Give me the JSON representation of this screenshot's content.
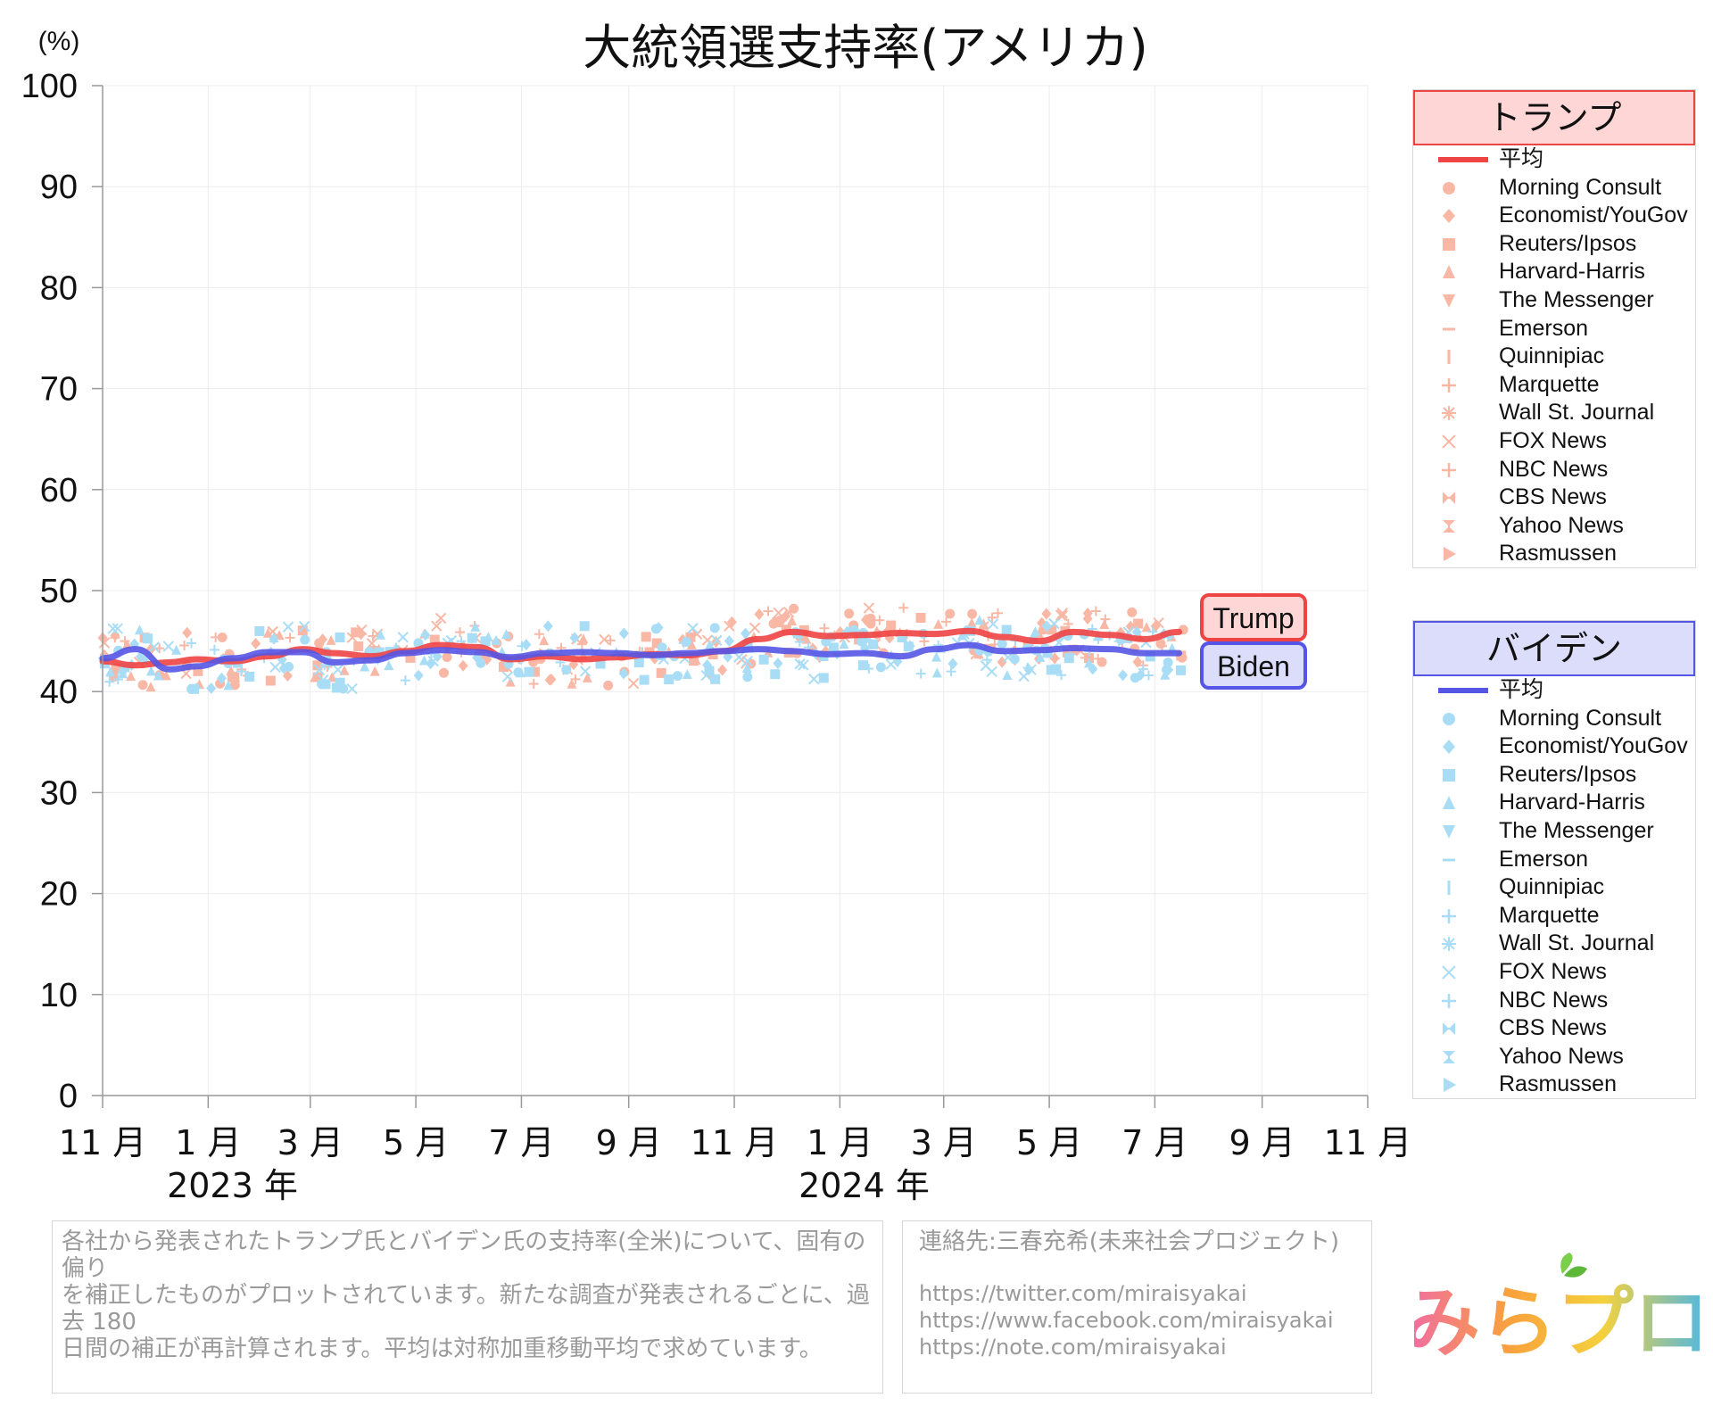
{
  "page": {
    "title": "大統領選支持率(アメリカ)",
    "y_unit": "(%)",
    "note": [
      "各社から発表されたトランプ氏とバイデン氏の支持率(全米)について、固有の偏り",
      "を補正したものがプロットされています。新たな調査が発表されるごとに、過去 180",
      "日間の補正が再計算されます。平均は対称加重移動平均で求めています。"
    ],
    "contact_title": "連絡先:三春充希(未来社会プロジェクト)",
    "links": [
      "https://twitter.com/miraisyakai",
      "https://www.facebook.com/miraisyakai",
      "https://note.com/miraisyakai"
    ],
    "logo_text": "みらプロ"
  },
  "legends": [
    {
      "heading": "トランプ",
      "color": "#ef4444",
      "head_fill": "#ffd6d6",
      "marker_color": "#f9b8a6",
      "items": [
        {
          "label": "平均",
          "icon": "line"
        },
        {
          "label": "Morning Consult",
          "icon": "circle"
        },
        {
          "label": "Economist/YouGov",
          "icon": "diamond"
        },
        {
          "label": "Reuters/Ipsos",
          "icon": "square"
        },
        {
          "label": "Harvard-Harris",
          "icon": "triangle-up"
        },
        {
          "label": "The Messenger",
          "icon": "triangle-down"
        },
        {
          "label": "Emerson",
          "icon": "dash"
        },
        {
          "label": "Quinnipiac",
          "icon": "vbar"
        },
        {
          "label": "Marquette",
          "icon": "plus"
        },
        {
          "label": "Wall St. Journal",
          "icon": "asterisk"
        },
        {
          "label": "FOX News",
          "icon": "x"
        },
        {
          "label": "NBC News",
          "icon": "plus"
        },
        {
          "label": "CBS News",
          "icon": "bowtie"
        },
        {
          "label": "Yahoo News",
          "icon": "hourglass"
        },
        {
          "label": "Rasmussen",
          "icon": "triangle-right"
        }
      ]
    },
    {
      "heading": "バイデン",
      "color": "#5555e6",
      "head_fill": "#dcdcfb",
      "marker_color": "#a9dcf5",
      "items": [
        {
          "label": "平均",
          "icon": "line"
        },
        {
          "label": "Morning Consult",
          "icon": "circle"
        },
        {
          "label": "Economist/YouGov",
          "icon": "diamond"
        },
        {
          "label": "Reuters/Ipsos",
          "icon": "square"
        },
        {
          "label": "Harvard-Harris",
          "icon": "triangle-up"
        },
        {
          "label": "The Messenger",
          "icon": "triangle-down"
        },
        {
          "label": "Emerson",
          "icon": "dash"
        },
        {
          "label": "Quinnipiac",
          "icon": "vbar"
        },
        {
          "label": "Marquette",
          "icon": "plus"
        },
        {
          "label": "Wall St. Journal",
          "icon": "asterisk"
        },
        {
          "label": "FOX News",
          "icon": "x"
        },
        {
          "label": "NBC News",
          "icon": "plus"
        },
        {
          "label": "CBS News",
          "icon": "bowtie"
        },
        {
          "label": "Yahoo News",
          "icon": "hourglass"
        },
        {
          "label": "Rasmussen",
          "icon": "triangle-right"
        }
      ]
    }
  ],
  "chart_data": {
    "type": "line",
    "title": "大統領選支持率(アメリカ)",
    "ylabel": "(%)",
    "ylim": [
      0,
      100
    ],
    "yticks": [
      0,
      10,
      20,
      30,
      40,
      50,
      60,
      70,
      80,
      90,
      100
    ],
    "xlim": [
      "2022-11-01",
      "2024-11-01"
    ],
    "month_ticks": [
      {
        "date": "2022-11-01",
        "label": "11 月"
      },
      {
        "date": "2023-01-01",
        "label": "1 月"
      },
      {
        "date": "2023-03-01",
        "label": "3 月"
      },
      {
        "date": "2023-05-01",
        "label": "5 月"
      },
      {
        "date": "2023-07-01",
        "label": "7 月"
      },
      {
        "date": "2023-09-01",
        "label": "9 月"
      },
      {
        "date": "2023-11-01",
        "label": "11 月"
      },
      {
        "date": "2024-01-01",
        "label": "1 月"
      },
      {
        "date": "2024-03-01",
        "label": "3 月"
      },
      {
        "date": "2024-05-01",
        "label": "5 月"
      },
      {
        "date": "2024-07-01",
        "label": "7 月"
      },
      {
        "date": "2024-09-01",
        "label": "9 月"
      },
      {
        "date": "2024-11-01",
        "label": "11 月"
      }
    ],
    "year_labels": [
      {
        "date": "2023-01-15",
        "label": "2023 年"
      },
      {
        "date": "2024-01-15",
        "label": "2024 年"
      }
    ],
    "grid": true,
    "series": [
      {
        "name": "Trump",
        "color": "#ef4444",
        "x": [
          "2022-11-01",
          "2022-11-20",
          "2022-12-10",
          "2022-12-25",
          "2023-01-15",
          "2023-02-05",
          "2023-02-25",
          "2023-03-15",
          "2023-04-05",
          "2023-04-25",
          "2023-05-15",
          "2023-06-05",
          "2023-06-25",
          "2023-07-15",
          "2023-08-05",
          "2023-08-25",
          "2023-09-15",
          "2023-10-05",
          "2023-10-25",
          "2023-11-15",
          "2023-12-05",
          "2023-12-25",
          "2024-01-15",
          "2024-02-05",
          "2024-02-25",
          "2024-03-15",
          "2024-04-05",
          "2024-04-25",
          "2024-05-15",
          "2024-06-05",
          "2024-06-25",
          "2024-07-15"
        ],
        "y": [
          43.0,
          42.6,
          42.9,
          43.2,
          43.0,
          43.5,
          44.2,
          43.8,
          43.5,
          44.0,
          44.6,
          44.4,
          43.2,
          43.5,
          43.2,
          43.4,
          43.7,
          43.6,
          44.0,
          45.2,
          45.9,
          45.5,
          45.6,
          45.8,
          45.7,
          46.0,
          45.4,
          45.0,
          45.9,
          45.6,
          45.2,
          45.9
        ]
      },
      {
        "name": "Biden",
        "color": "#5555e6",
        "x": [
          "2022-11-01",
          "2022-11-20",
          "2022-12-10",
          "2022-12-25",
          "2023-01-15",
          "2023-02-05",
          "2023-02-25",
          "2023-03-15",
          "2023-04-05",
          "2023-04-25",
          "2023-05-15",
          "2023-06-05",
          "2023-06-25",
          "2023-07-15",
          "2023-08-05",
          "2023-08-25",
          "2023-09-15",
          "2023-10-05",
          "2023-10-25",
          "2023-11-15",
          "2023-12-05",
          "2023-12-25",
          "2024-01-15",
          "2024-02-05",
          "2024-02-25",
          "2024-03-15",
          "2024-04-05",
          "2024-04-25",
          "2024-05-15",
          "2024-06-05",
          "2024-06-25",
          "2024-07-15"
        ],
        "y": [
          43.3,
          44.2,
          42.2,
          42.5,
          43.3,
          43.9,
          43.9,
          42.9,
          43.1,
          43.8,
          44.1,
          43.9,
          43.4,
          43.8,
          43.9,
          43.8,
          43.6,
          43.8,
          44.0,
          44.2,
          44.0,
          43.7,
          43.8,
          43.5,
          44.2,
          44.6,
          44.0,
          44.1,
          44.3,
          44.2,
          43.8,
          43.8
        ]
      }
    ],
    "annotations": [
      {
        "text": "Trump",
        "color": "#ef4444",
        "fill": "#ffd6d6"
      },
      {
        "text": "Biden",
        "color": "#5555e6",
        "fill": "#dcdcfb"
      }
    ]
  }
}
